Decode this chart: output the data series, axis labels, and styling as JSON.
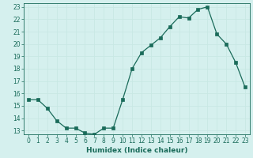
{
  "xlabel": "Humidex (Indice chaleur)",
  "x": [
    0,
    1,
    2,
    3,
    4,
    5,
    6,
    7,
    8,
    9,
    10,
    11,
    12,
    13,
    14,
    15,
    16,
    17,
    18,
    19,
    20,
    21,
    22,
    23
  ],
  "y": [
    15.5,
    15.5,
    14.8,
    13.8,
    13.2,
    13.2,
    12.8,
    12.7,
    13.2,
    13.2,
    15.5,
    18.0,
    19.3,
    19.9,
    20.5,
    21.4,
    22.2,
    22.1,
    22.8,
    23.0,
    20.8,
    20.0,
    18.5,
    16.5
  ],
  "line_color": "#1a6b5a",
  "marker_color": "#1a6b5a",
  "bg_color": "#d5f0ee",
  "grid_color": "#c8e8e4",
  "axis_label_color": "#1a6b5a",
  "tick_color": "#1a6b5a",
  "ylim": [
    13,
    23
  ],
  "xlim": [
    -0.5,
    23.5
  ],
  "yticks": [
    13,
    14,
    15,
    16,
    17,
    18,
    19,
    20,
    21,
    22,
    23
  ],
  "xticks": [
    0,
    1,
    2,
    3,
    4,
    5,
    6,
    7,
    8,
    9,
    10,
    11,
    12,
    13,
    14,
    15,
    16,
    17,
    18,
    19,
    20,
    21,
    22,
    23
  ],
  "label_fontsize": 6.5,
  "tick_fontsize": 5.5,
  "figsize": [
    3.2,
    2.0
  ],
  "dpi": 100
}
